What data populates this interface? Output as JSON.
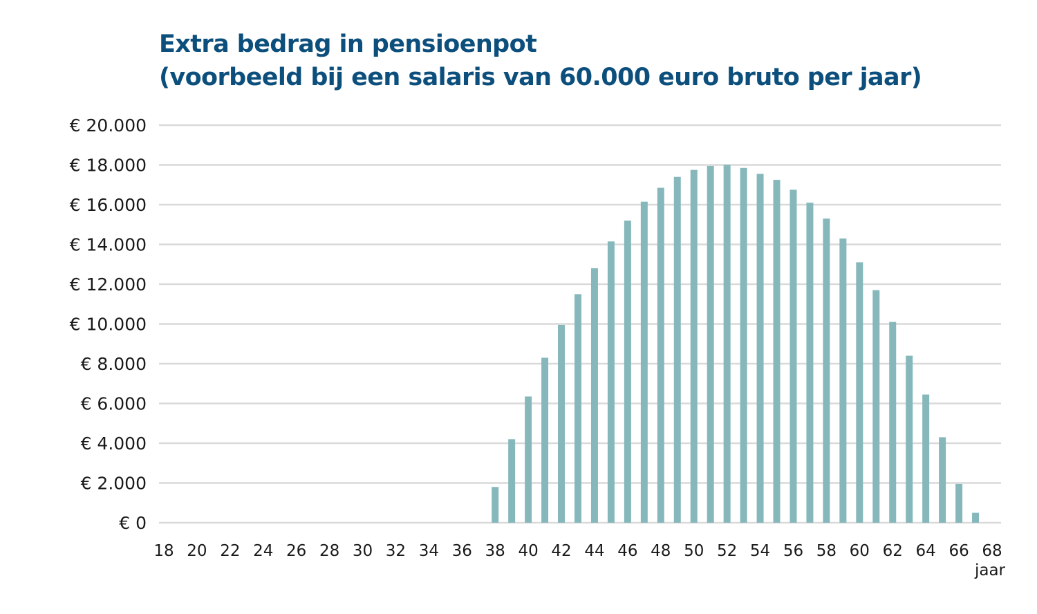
{
  "chart_data": {
    "type": "bar",
    "title_lines": [
      "Extra bedrag in pensioenpot",
      "(voorbeeld bij een salaris van 60.000 euro bruto per jaar)"
    ],
    "xlabel": "jaar",
    "ylabel": "",
    "ylim": [
      0,
      20000
    ],
    "xlim": [
      18,
      68
    ],
    "grid": true,
    "y_ticks": [
      {
        "value": 0,
        "label": "€ 0"
      },
      {
        "value": 2000,
        "label": "€ 2.000"
      },
      {
        "value": 4000,
        "label": "€ 4.000"
      },
      {
        "value": 6000,
        "label": "€ 6.000"
      },
      {
        "value": 8000,
        "label": "€ 8.000"
      },
      {
        "value": 10000,
        "label": "€ 10.000"
      },
      {
        "value": 12000,
        "label": "€ 12.000"
      },
      {
        "value": 14000,
        "label": "€ 14.000"
      },
      {
        "value": 16000,
        "label": "€ 16.000"
      },
      {
        "value": 18000,
        "label": "€ 18.000"
      },
      {
        "value": 20000,
        "label": "€ 20.000"
      }
    ],
    "x_ticks": [
      "18",
      "20",
      "22",
      "24",
      "26",
      "28",
      "30",
      "32",
      "34",
      "36",
      "38",
      "40",
      "42",
      "44",
      "46",
      "48",
      "50",
      "52",
      "54",
      "56",
      "58",
      "60",
      "62",
      "64",
      "66",
      "68"
    ],
    "x": [
      38,
      39,
      40,
      41,
      42,
      43,
      44,
      45,
      46,
      47,
      48,
      49,
      50,
      51,
      52,
      53,
      54,
      55,
      56,
      57,
      58,
      59,
      60,
      61,
      62,
      63,
      64,
      65,
      66,
      67
    ],
    "values": [
      1800,
      4200,
      6350,
      8300,
      9950,
      11500,
      12800,
      14150,
      15200,
      16150,
      16850,
      17400,
      17750,
      17950,
      18000,
      17850,
      17550,
      17250,
      16750,
      16100,
      15300,
      14300,
      13100,
      11700,
      10100,
      8400,
      6450,
      4300,
      1950,
      500
    ],
    "colors": {
      "bar": "#86b8bb",
      "grid": "#d9d9d9",
      "title": "#0d4f7c",
      "text": "#1a1a1a"
    }
  }
}
